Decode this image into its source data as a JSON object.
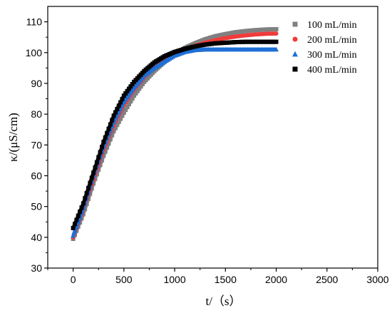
{
  "chart_data": {
    "type": "scatter",
    "xlabel": "t/（s）",
    "ylabel": "κ/(μS/cm)",
    "xlim": [
      -250,
      3000
    ],
    "ylim": [
      30,
      115
    ],
    "xticks": [
      0,
      500,
      1000,
      1500,
      2000,
      2500,
      3000
    ],
    "yticks": [
      30,
      40,
      50,
      60,
      70,
      80,
      90,
      100,
      110
    ],
    "legend_position": "top-right",
    "grid": false,
    "series": [
      {
        "name": "100 mL/min",
        "marker": "square",
        "color": "#808080",
        "x": [
          0,
          100,
          200,
          300,
          400,
          500,
          600,
          700,
          800,
          900,
          1000,
          1100,
          1200,
          1300,
          1400,
          1500,
          1600,
          1700,
          1800,
          1900,
          2000
        ],
        "y": [
          39.5,
          47.5,
          57.5,
          66.5,
          74.5,
          80.5,
          86,
          90.5,
          94,
          97,
          99.5,
          101.5,
          103,
          104.3,
          105.3,
          106,
          106.6,
          107,
          107.3,
          107.5,
          107.6
        ]
      },
      {
        "name": "200 mL/min",
        "marker": "circle",
        "color": "#ef3b3b",
        "x": [
          0,
          100,
          200,
          300,
          400,
          500,
          600,
          700,
          800,
          900,
          1000,
          1100,
          1200,
          1300,
          1400,
          1500,
          1600,
          1700,
          1800,
          1900,
          2000
        ],
        "y": [
          40,
          49,
          59,
          68.5,
          76.5,
          83,
          88,
          92,
          95.3,
          97.7,
          99.5,
          101,
          102.2,
          103.2,
          104,
          104.7,
          105.2,
          105.6,
          105.9,
          106.1,
          106.2
        ]
      },
      {
        "name": "300 mL/min",
        "marker": "triangle",
        "color": "#1f6fd6",
        "x": [
          0,
          100,
          200,
          300,
          400,
          500,
          600,
          700,
          800,
          900,
          1000,
          1100,
          1200,
          1300,
          1400,
          1500,
          1600,
          1700,
          1800,
          1900,
          2000
        ],
        "y": [
          40.5,
          49.5,
          60,
          69.5,
          77.5,
          84,
          88.5,
          92.5,
          95,
          97,
          99,
          100.2,
          100.8,
          101,
          101,
          101,
          101,
          101,
          101,
          101,
          101
        ]
      },
      {
        "name": "400 mL/min",
        "marker": "square",
        "color": "#000000",
        "x": [
          0,
          100,
          200,
          300,
          400,
          500,
          600,
          700,
          800,
          900,
          1000,
          1100,
          1200,
          1300,
          1400,
          1500,
          1600,
          1700,
          1800,
          1900,
          2000
        ],
        "y": [
          43,
          51,
          61,
          71,
          79.5,
          86,
          90.5,
          94,
          96.8,
          98.8,
          100.2,
          101.2,
          102,
          102.6,
          103,
          103.2,
          103.4,
          103.5,
          103.5,
          103.5,
          103.5
        ]
      }
    ]
  }
}
